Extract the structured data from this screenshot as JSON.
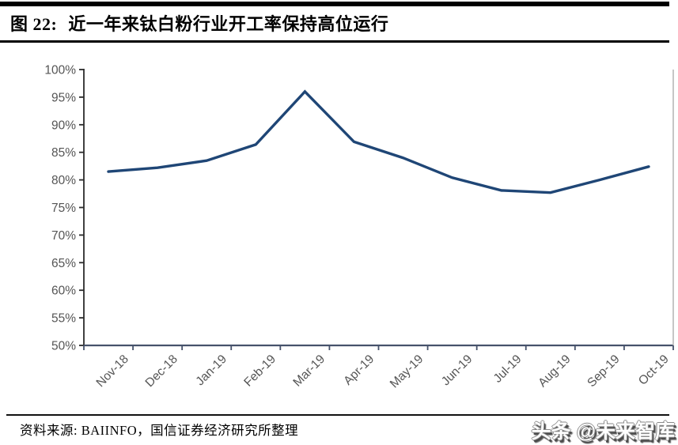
{
  "header": {
    "figure_label": "图 22:",
    "title": "近一年来钛白粉行业开工率保持高位运行"
  },
  "chart_data": {
    "type": "line",
    "title": "近一年来钛白粉行业开工率保持高位运行",
    "categories": [
      "Nov-18",
      "Dec-18",
      "Jan-19",
      "Feb-19",
      "Mar-19",
      "Apr-19",
      "May-19",
      "Jun-19",
      "Jul-19",
      "Aug-19",
      "Sep-19",
      "Oct-19"
    ],
    "values": [
      81.5,
      82.2,
      83.5,
      86.4,
      96.0,
      86.9,
      84.0,
      80.4,
      78.1,
      77.7,
      80.0,
      82.4
    ],
    "xlabel": "",
    "ylabel": "",
    "ylim": [
      50,
      100
    ],
    "y_ticks": [
      {
        "value": 100,
        "label": "100%"
      },
      {
        "value": 95,
        "label": "95%"
      },
      {
        "value": 90,
        "label": "90%"
      },
      {
        "value": 85,
        "label": "85%"
      },
      {
        "value": 80,
        "label": "80%"
      },
      {
        "value": 75,
        "label": "75%"
      },
      {
        "value": 70,
        "label": "70%"
      },
      {
        "value": 65,
        "label": "65%"
      },
      {
        "value": 60,
        "label": "60%"
      },
      {
        "value": 55,
        "label": "55%"
      },
      {
        "value": 50,
        "label": "50%"
      }
    ],
    "grid": false,
    "legend_position": "none",
    "colors": {
      "line": "#1f4676",
      "y_axis": "#2b2b2b",
      "x_axis": "#46526b",
      "right_border": "#aeaeae",
      "tick_label": "#555555"
    }
  },
  "footer": {
    "source_text": "资料来源: BAIINFO，国信证券经济研究所整理"
  },
  "watermark": {
    "text": "头条 @未来智库"
  }
}
